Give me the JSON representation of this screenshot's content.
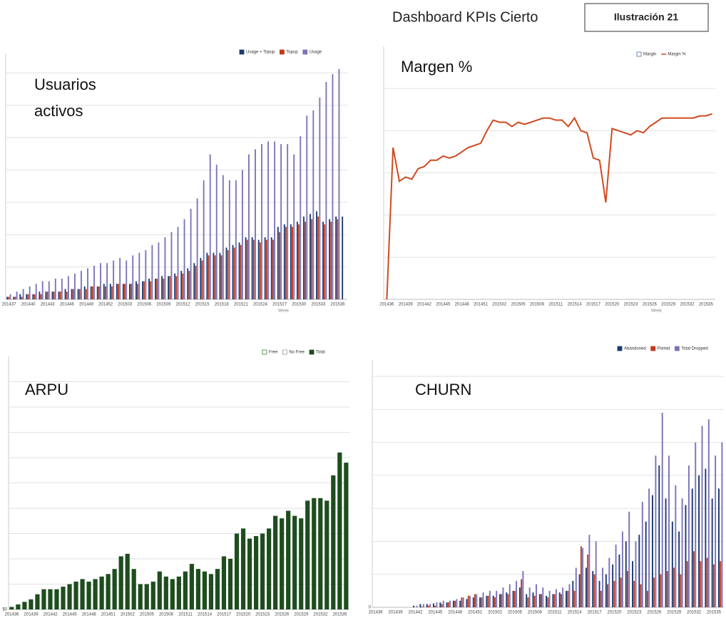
{
  "header": {
    "title": "Dashboard KPIs Cierto",
    "label": "Ilustración 21"
  },
  "chart_data": [
    {
      "type": "bar",
      "title": [
        "Usuarios",
        "activos"
      ],
      "x_label": "Week",
      "categories": [
        "201437",
        null,
        null,
        "201440",
        null,
        null,
        "201443",
        null,
        null,
        "201446",
        null,
        null,
        "201449",
        null,
        null,
        "201452",
        null,
        null,
        "201503",
        null,
        null,
        "201506",
        null,
        null,
        "201509",
        null,
        null,
        "201512",
        null,
        null,
        "201515",
        null,
        null,
        "201518",
        null,
        null,
        "201521",
        null,
        null,
        "201524",
        null,
        null,
        "201527",
        null,
        null,
        "201530",
        null,
        null,
        "201533",
        null,
        null,
        "201536",
        null
      ],
      "ylim": [
        0,
        95
      ],
      "gridlines": [
        12.5,
        25,
        37.5,
        50,
        62.5,
        75,
        87.5
      ],
      "yticks": [],
      "series": [
        {
          "name": "Usage + Topup",
          "color": "#1f3a6e",
          "values": [
            1,
            1,
            2,
            2,
            2,
            3,
            3,
            3,
            3,
            4,
            4,
            4,
            5,
            5,
            5,
            6,
            6,
            6,
            6,
            6,
            7,
            7,
            8,
            8,
            9,
            9,
            10,
            11,
            12,
            14,
            16,
            18,
            18,
            18,
            20,
            21,
            22,
            24,
            24,
            23,
            24,
            24,
            28,
            29,
            29,
            30,
            32,
            33,
            34,
            30,
            31,
            32,
            32
          ]
        },
        {
          "name": "Topup",
          "color": "#c0391b",
          "values": [
            1,
            1,
            1,
            2,
            2,
            2,
            3,
            3,
            3,
            3,
            4,
            4,
            4,
            5,
            5,
            5,
            5,
            6,
            6,
            6,
            6,
            7,
            7,
            8,
            8,
            9,
            9,
            10,
            11,
            13,
            15,
            17,
            17,
            17,
            19,
            20,
            21,
            23,
            23,
            22,
            23,
            23,
            26,
            28,
            28,
            29,
            30,
            31,
            32,
            29,
            30,
            31,
            null
          ]
        },
        {
          "name": "Usage",
          "color": "#7b74b8",
          "values": [
            2,
            3,
            4,
            5,
            6,
            7,
            7,
            8,
            8,
            9,
            10,
            11,
            12,
            13,
            14,
            14,
            15,
            16,
            15,
            17,
            18,
            19,
            21,
            22,
            24,
            26,
            28,
            31,
            35,
            39,
            46,
            56,
            52,
            48,
            46,
            46,
            50,
            56,
            58,
            60,
            61,
            61,
            60,
            60,
            56,
            63,
            71,
            73,
            78,
            84,
            87,
            89,
            null
          ]
        }
      ]
    },
    {
      "type": "line",
      "title": "Margen %",
      "x_label": "Week",
      "categories": [
        "201436",
        null,
        null,
        "201439",
        null,
        null,
        "201442",
        null,
        null,
        "201445",
        null,
        null,
        "201448",
        null,
        null,
        "201451",
        null,
        null,
        "201502",
        null,
        null,
        "201505",
        null,
        null,
        "201508",
        null,
        null,
        "201511",
        null,
        null,
        "201514",
        null,
        null,
        "201517",
        null,
        null,
        "201520",
        null,
        null,
        "201523",
        null,
        null,
        "201526",
        null,
        null,
        "201529",
        null,
        null,
        "201532",
        null,
        null,
        "201535",
        null
      ],
      "ylim": [
        0,
        60
      ],
      "gridlines": [
        10,
        20,
        30,
        40,
        50
      ],
      "yticks": [],
      "series": [
        {
          "name": "Margin",
          "color": "#4a6fa5",
          "hollow": true
        },
        {
          "name": "Margin %",
          "color": "#d04a1e",
          "values": [
            0,
            36,
            28,
            29,
            28.5,
            31,
            31.5,
            33,
            33,
            34,
            33.5,
            34,
            35,
            36,
            36.5,
            37,
            40,
            42.5,
            42,
            42,
            41,
            42,
            41.5,
            42,
            42.5,
            43,
            43,
            42.5,
            42.5,
            41,
            43,
            40,
            39.5,
            33.5,
            33,
            23,
            40.5,
            40,
            39.5,
            39,
            40,
            39.5,
            41,
            42,
            43,
            43,
            43,
            43,
            43,
            43,
            43.5,
            43.5,
            44
          ]
        }
      ]
    },
    {
      "type": "bar",
      "title": "ARPU",
      "categories": [
        "201436",
        null,
        null,
        "201439",
        null,
        null,
        "201442",
        null,
        null,
        "201445",
        null,
        null,
        "201448",
        null,
        null,
        "201451",
        null,
        null,
        "201502",
        null,
        null,
        "201505",
        null,
        null,
        "201508",
        null,
        null,
        "201511",
        null,
        null,
        "201514",
        null,
        null,
        "201517",
        null,
        null,
        "201520",
        null,
        null,
        "201523",
        null,
        null,
        "201526",
        null,
        null,
        "201529",
        null,
        null,
        "201532",
        null,
        null,
        "201535",
        null
      ],
      "ylim": [
        0,
        10
      ],
      "gridlines": [
        1,
        2,
        3,
        4,
        5,
        6,
        7,
        8,
        9
      ],
      "yticks": [
        {
          "value": 0,
          "label": "$0"
        }
      ],
      "series": [
        {
          "name": "Free",
          "color": "#2e8b2e",
          "hollow": true
        },
        {
          "name": "No Free",
          "color": "#999999",
          "hollow": true
        },
        {
          "name": "Total",
          "color": "#1e4d1e",
          "values": [
            0.1,
            0.2,
            0.3,
            0.4,
            0.6,
            0.8,
            0.8,
            0.8,
            0.9,
            1.0,
            1.1,
            1.2,
            1.1,
            1.2,
            1.3,
            1.4,
            1.6,
            2.1,
            2.2,
            1.6,
            1.0,
            1.0,
            1.1,
            1.5,
            1.3,
            1.2,
            1.3,
            1.5,
            1.8,
            1.6,
            1.5,
            1.4,
            1.6,
            2.1,
            2.0,
            3.0,
            3.2,
            2.8,
            2.9,
            3.0,
            3.2,
            3.7,
            3.6,
            3.9,
            3.7,
            3.6,
            4.3,
            4.4,
            4.4,
            4.3,
            5.3,
            6.2,
            5.8
          ]
        }
      ]
    },
    {
      "type": "bar",
      "title": "CHURN",
      "categories": [
        "201436",
        null,
        null,
        "201439",
        null,
        null,
        "201442",
        null,
        null,
        "201445",
        null,
        null,
        "201448",
        null,
        null,
        "201451",
        null,
        null,
        "201502",
        null,
        null,
        "201505",
        null,
        null,
        "201508",
        null,
        null,
        "201511",
        null,
        null,
        "201514",
        null,
        null,
        "201517",
        null,
        null,
        "201520",
        null,
        null,
        "201523",
        null,
        null,
        "201526",
        null,
        null,
        "201529",
        null,
        null,
        "201532",
        null,
        null,
        "201535",
        null
      ],
      "ylim": [
        0,
        7.5
      ],
      "gridlines": [
        1,
        2,
        3,
        4,
        5,
        6,
        7
      ],
      "yticks": [
        0
      ],
      "series": [
        {
          "name": "Abandoned",
          "color": "#1f3a6e",
          "values": [
            0,
            0,
            0,
            0,
            0,
            0,
            0.05,
            0.1,
            0.1,
            0.12,
            0.15,
            0.15,
            0.2,
            0.2,
            0.25,
            0.3,
            0.3,
            0.35,
            0.35,
            0.4,
            0.45,
            0.5,
            0.6,
            0.4,
            0.45,
            0.4,
            0.35,
            0.4,
            0.45,
            0.5,
            0.8,
            1.0,
            1.2,
            1.1,
            0.8,
            1.0,
            1.3,
            1.6,
            2.0,
            1.4,
            2.2,
            2.6,
            3.4,
            4.3,
            3.3,
            2.6,
            2.3,
            3.1,
            3.6,
            4.0,
            4.2,
            3.3,
            3.6
          ]
        },
        {
          "name": "Ported",
          "color": "#c0391b",
          "values": [
            0,
            0,
            0,
            0,
            0,
            0,
            0,
            0.02,
            0.05,
            0.05,
            0.1,
            0.15,
            0.2,
            0.3,
            0.35,
            0.4,
            0.3,
            0.35,
            0.3,
            0.4,
            0.4,
            0.5,
            0.85,
            0.3,
            0.35,
            0.4,
            0.3,
            0.4,
            0.4,
            0.5,
            0.5,
            1.85,
            1.6,
            1.0,
            0.5,
            0.7,
            0.8,
            0.9,
            1.1,
            0.8,
            0.7,
            0.5,
            0.9,
            1.0,
            1.1,
            1.2,
            1.0,
            1.4,
            1.7,
            1.4,
            1.5,
            1.3,
            1.4
          ]
        },
        {
          "name": "Total Dropped",
          "color": "#7b74b8",
          "values": [
            0,
            0,
            0,
            0,
            0,
            0,
            0.05,
            0.1,
            0.1,
            0.15,
            0.2,
            0.2,
            0.25,
            0.3,
            0.35,
            0.4,
            0.45,
            0.5,
            0.5,
            0.6,
            0.7,
            0.8,
            1.1,
            0.6,
            0.7,
            0.6,
            0.5,
            0.55,
            0.6,
            0.7,
            1.2,
            1.8,
            2.2,
            2.0,
            1.2,
            1.5,
            1.9,
            2.3,
            2.9,
            2.0,
            3.2,
            3.6,
            4.6,
            5.9,
            4.6,
            3.7,
            3.3,
            4.3,
            5.0,
            5.5,
            5.7,
            4.6,
            5.0
          ]
        }
      ]
    }
  ]
}
